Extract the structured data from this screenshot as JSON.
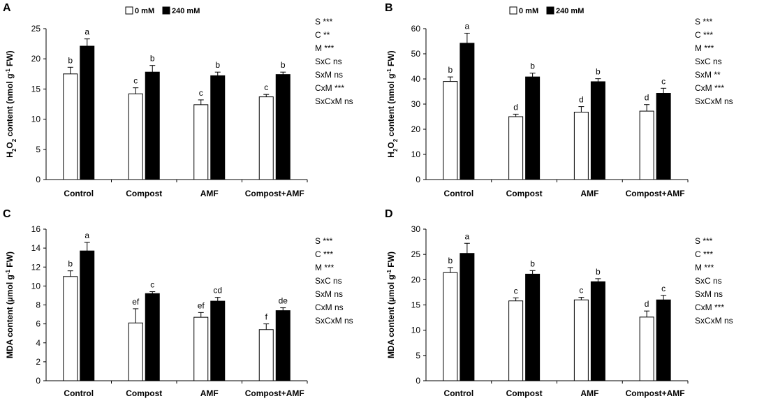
{
  "legend": {
    "series": [
      {
        "name": "0 mM",
        "color": "#ffffff"
      },
      {
        "name": "240 mM",
        "color": "#000000"
      }
    ]
  },
  "chart_data": [
    {
      "panel": "A",
      "type": "bar",
      "ylabel": {
        "prefix": "H",
        "sub1": "2",
        "mid": "O",
        "sub2": "2",
        "rest": " content  (nmol g",
        "sup": "-1",
        "end": " FW)"
      },
      "ylim": [
        0,
        25
      ],
      "yticks": [
        0,
        5,
        10,
        15,
        20,
        25
      ],
      "categories": [
        "Control",
        "Compost",
        "AMF",
        "Compost+AMF"
      ],
      "series": [
        {
          "name": "0 mM",
          "values": [
            17.5,
            14.2,
            12.4,
            13.7
          ],
          "errors": [
            1.1,
            1.0,
            0.8,
            0.4
          ],
          "letters": [
            "b",
            "c",
            "c",
            "c"
          ]
        },
        {
          "name": "240 mM",
          "values": [
            22.1,
            17.8,
            17.2,
            17.4
          ],
          "errors": [
            1.2,
            1.1,
            0.6,
            0.4
          ],
          "letters": [
            "a",
            "b",
            "b",
            "b"
          ]
        }
      ],
      "stats": [
        "S ***",
        "C **",
        "M ***",
        "SxC ns",
        "SxM ns",
        "CxM ***",
        "SxCxM ns"
      ]
    },
    {
      "panel": "B",
      "type": "bar",
      "ylabel": {
        "prefix": "H",
        "sub1": "2",
        "mid": "O",
        "sub2": "2",
        "rest": " content  (nmol g",
        "sup": "-1",
        "end": " FW)"
      },
      "ylim": [
        0,
        60
      ],
      "yticks": [
        0,
        10,
        20,
        30,
        40,
        50,
        60
      ],
      "categories": [
        "Control",
        "Compost",
        "AMF",
        "Compost+AMF"
      ],
      "series": [
        {
          "name": "0 mM",
          "values": [
            39.0,
            25.0,
            26.8,
            27.2
          ],
          "errors": [
            1.8,
            1.0,
            2.2,
            2.6
          ],
          "letters": [
            "b",
            "d",
            "d",
            "d"
          ]
        },
        {
          "name": "240 mM",
          "values": [
            54.2,
            40.8,
            38.9,
            34.3
          ],
          "errors": [
            4.0,
            1.5,
            1.2,
            2.0
          ],
          "letters": [
            "a",
            "b",
            "b",
            "c"
          ]
        }
      ],
      "stats": [
        "S ***",
        "C ***",
        "M ***",
        "SxC ns",
        "SxM **",
        "CxM ***",
        "SxCxM ns"
      ]
    },
    {
      "panel": "C",
      "type": "bar",
      "ylabel": {
        "prefix": "MDA content  (µmol g",
        "sub1": "",
        "mid": "",
        "sub2": "",
        "rest": "",
        "sup": "-1",
        "end": " FW)"
      },
      "ylim": [
        0,
        16
      ],
      "yticks": [
        0,
        2,
        4,
        6,
        8,
        10,
        12,
        14,
        16
      ],
      "categories": [
        "Control",
        "Compost",
        "AMF",
        "Compost+AMF"
      ],
      "series": [
        {
          "name": "0 mM",
          "values": [
            11.0,
            6.1,
            6.7,
            5.4
          ],
          "errors": [
            0.6,
            1.5,
            0.5,
            0.6
          ],
          "letters": [
            "b",
            "ef",
            "ef",
            "f"
          ]
        },
        {
          "name": "240 mM",
          "values": [
            13.7,
            9.2,
            8.4,
            7.4
          ],
          "errors": [
            0.9,
            0.2,
            0.4,
            0.3
          ],
          "letters": [
            "a",
            "c",
            "cd",
            "de"
          ]
        }
      ],
      "stats": [
        "S ***",
        "C ***",
        "M ***",
        "SxC ns",
        "SxM ns",
        "CxM ns",
        "SxCxM ns"
      ]
    },
    {
      "panel": "D",
      "type": "bar",
      "ylabel": {
        "prefix": "MDA content  (µmol g",
        "sub1": "",
        "mid": "",
        "sub2": "",
        "rest": "",
        "sup": "-1",
        "end": " FW)"
      },
      "ylim": [
        0,
        30
      ],
      "yticks": [
        0,
        5,
        10,
        15,
        20,
        25,
        30
      ],
      "categories": [
        "Control",
        "Compost",
        "AMF",
        "Compost+AMF"
      ],
      "series": [
        {
          "name": "0 mM",
          "values": [
            21.4,
            15.8,
            16.0,
            12.6
          ],
          "errors": [
            1.0,
            0.6,
            0.5,
            1.2
          ],
          "letters": [
            "b",
            "c",
            "c",
            "d"
          ]
        },
        {
          "name": "240 mM",
          "values": [
            25.2,
            21.1,
            19.6,
            16.0
          ],
          "errors": [
            2.0,
            0.7,
            0.6,
            0.9
          ],
          "letters": [
            "a",
            "b",
            "b",
            "c"
          ]
        }
      ],
      "stats": [
        "S ***",
        "C ***",
        "M ***",
        "SxC ns",
        "SxM ns",
        "CxM ***",
        "SxCxM ns"
      ]
    }
  ]
}
